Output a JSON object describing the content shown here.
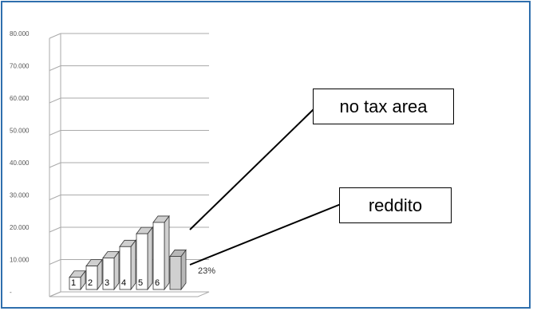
{
  "chart_data": {
    "type": "bar",
    "y_ticks": [
      "80.000",
      "70.000",
      "60.000",
      "50.000",
      "40.000",
      "30.000",
      "20.000",
      "10.000",
      "-"
    ],
    "ylim": [
      0,
      80000
    ],
    "categories": [
      "1",
      "2",
      "3",
      "4",
      "5",
      "6"
    ],
    "values": [
      4500,
      8000,
      10500,
      14000,
      18000,
      21500
    ],
    "stacked_segment": {
      "name": "reddito",
      "label": "23%",
      "value": 11000
    },
    "annotations": [
      {
        "text": "no tax area"
      },
      {
        "text": "reddito"
      }
    ],
    "colors": {
      "bar": "#ffffff",
      "bar_side": "#cfcfcf",
      "reddito": "#d0d0d0",
      "grid": "#aaaaaa",
      "frame": "#2f6fad"
    }
  }
}
